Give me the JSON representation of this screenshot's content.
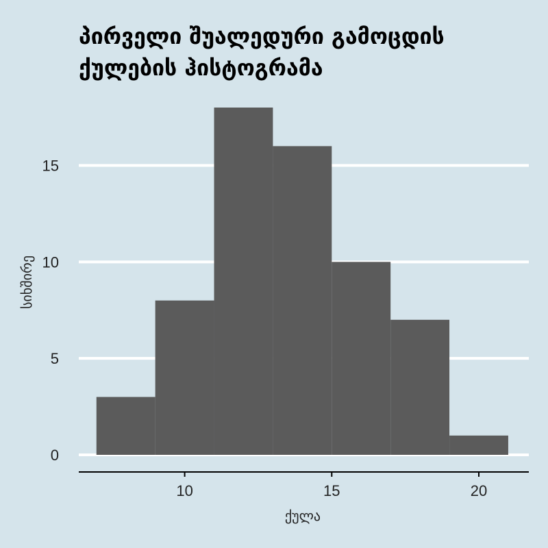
{
  "chart_data": {
    "type": "bar",
    "title_lines": [
      "პირველი შუალედური გამოცდის",
      "ქულების ჰისტოგრამა"
    ],
    "xlabel": "ქულა",
    "ylabel": "სიხშირე",
    "bins": [
      {
        "start": 7,
        "end": 9,
        "count": 3
      },
      {
        "start": 9,
        "end": 11,
        "count": 8
      },
      {
        "start": 11,
        "end": 13,
        "count": 18
      },
      {
        "start": 13,
        "end": 15,
        "count": 16
      },
      {
        "start": 15,
        "end": 17,
        "count": 10
      },
      {
        "start": 17,
        "end": 19,
        "count": 7
      },
      {
        "start": 19,
        "end": 21,
        "count": 1
      }
    ],
    "xticks": [
      10,
      15,
      20
    ],
    "yticks": [
      0,
      5,
      10,
      15
    ],
    "xlim": [
      6.4,
      21.7
    ],
    "ylim": [
      0,
      18
    ],
    "grid": "horizontal",
    "colors": {
      "background": "#d5e4eb",
      "bar": "#5b5b5b",
      "grid": "#ffffff",
      "axis": "#000000"
    }
  }
}
